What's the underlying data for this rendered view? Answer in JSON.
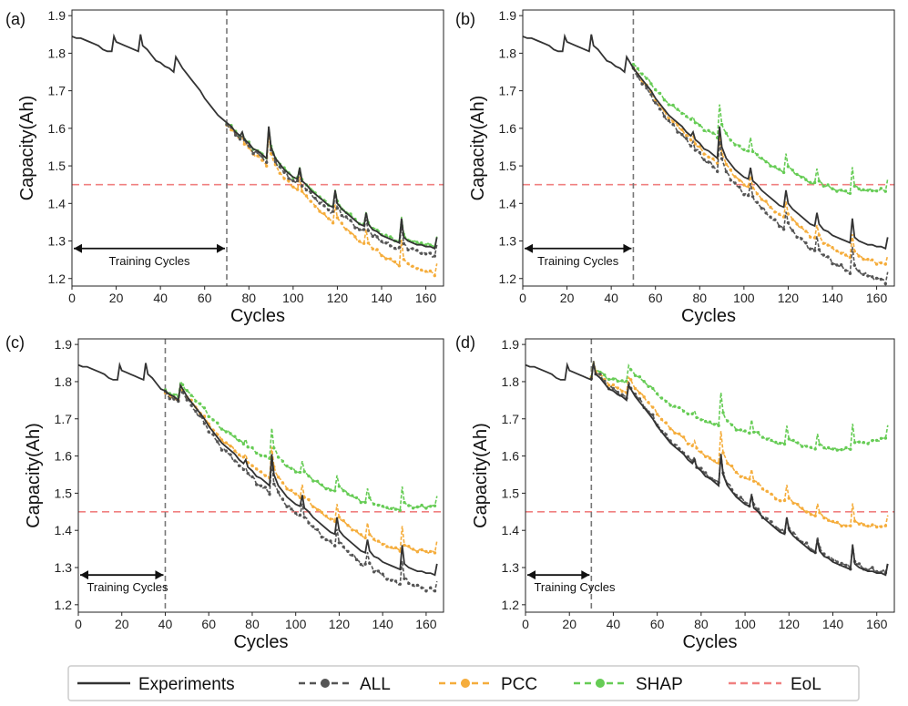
{
  "chart_data": {
    "type": "line",
    "figure": "Battery capacity prediction, 2x2 panels",
    "x_range": [
      0,
      168
    ],
    "y_range": [
      1.18,
      1.915
    ],
    "x_ticks": [
      0,
      20,
      40,
      60,
      80,
      100,
      120,
      140,
      160
    ],
    "y_ticks": [
      1.2,
      1.3,
      1.4,
      1.5,
      1.6,
      1.7,
      1.8,
      1.9
    ],
    "xlabel": "Cycles",
    "ylabel": "Capacity(Ah)",
    "eol_capacity": 1.45,
    "training_label": "Training Cycles",
    "experiments": {
      "name": "Experiments",
      "x": [
        0,
        2,
        4,
        6,
        8,
        10,
        12,
        14,
        16,
        18,
        19,
        20,
        22,
        24,
        26,
        28,
        30,
        31,
        32,
        34,
        36,
        38,
        40,
        42,
        44,
        46,
        47,
        48,
        50,
        52,
        54,
        56,
        58,
        60,
        62,
        64,
        66,
        68,
        70,
        72,
        74,
        76,
        77,
        78,
        80,
        82,
        84,
        86,
        88,
        89,
        90,
        92,
        94,
        96,
        98,
        100,
        102,
        103,
        104,
        106,
        108,
        110,
        112,
        114,
        116,
        118,
        119,
        120,
        122,
        124,
        126,
        128,
        130,
        132,
        133,
        134,
        136,
        138,
        140,
        142,
        144,
        146,
        148,
        149,
        150,
        152,
        154,
        156,
        158,
        160,
        162,
        164,
        165
      ],
      "y": [
        1.845,
        1.84,
        1.84,
        1.835,
        1.83,
        1.825,
        1.82,
        1.81,
        1.805,
        1.805,
        1.845,
        1.83,
        1.825,
        1.82,
        1.815,
        1.81,
        1.805,
        1.85,
        1.82,
        1.81,
        1.795,
        1.78,
        1.775,
        1.765,
        1.76,
        1.75,
        1.79,
        1.78,
        1.76,
        1.745,
        1.73,
        1.715,
        1.7,
        1.68,
        1.665,
        1.65,
        1.635,
        1.625,
        1.615,
        1.605,
        1.59,
        1.58,
        1.59,
        1.57,
        1.56,
        1.545,
        1.54,
        1.53,
        1.52,
        1.605,
        1.55,
        1.52,
        1.505,
        1.49,
        1.48,
        1.47,
        1.465,
        1.495,
        1.46,
        1.45,
        1.435,
        1.425,
        1.415,
        1.405,
        1.395,
        1.39,
        1.435,
        1.4,
        1.385,
        1.375,
        1.365,
        1.355,
        1.345,
        1.34,
        1.375,
        1.345,
        1.33,
        1.325,
        1.315,
        1.31,
        1.305,
        1.3,
        1.295,
        1.36,
        1.31,
        1.3,
        1.295,
        1.29,
        1.29,
        1.285,
        1.285,
        1.28,
        1.31
      ]
    },
    "panels": [
      {
        "label": "(a)",
        "training_end": 70,
        "all": {
          "name": "ALL",
          "start": 1.61,
          "end": 1.29
        },
        "pcc": {
          "name": "PCC",
          "start": 1.61,
          "end": 1.24
        },
        "shap": {
          "name": "SHAP",
          "start": 1.615,
          "end": 1.315
        }
      },
      {
        "label": "(b)",
        "training_end": 50,
        "all": {
          "name": "ALL",
          "start": 1.755,
          "end": 1.22
        },
        "pcc": {
          "name": "PCC",
          "start": 1.76,
          "end": 1.265
        },
        "shap": {
          "name": "SHAP",
          "start": 1.77,
          "end": 1.465
        }
      },
      {
        "label": "(c)",
        "training_end": 40,
        "all": {
          "name": "ALL",
          "start": 1.77,
          "end": 1.265
        },
        "pcc": {
          "name": "PCC",
          "start": 1.77,
          "end": 1.37
        },
        "shap": {
          "name": "SHAP",
          "start": 1.775,
          "end": 1.495
        }
      },
      {
        "label": "(d)",
        "training_end": 30,
        "all": {
          "name": "ALL",
          "start": 1.81,
          "end": 1.315
        },
        "pcc": {
          "name": "PCC",
          "start": 1.81,
          "end": 1.44
        },
        "shap": {
          "name": "SHAP",
          "start": 1.81,
          "end": 1.68
        }
      }
    ],
    "legend": {
      "position": "bottom-center",
      "entries": [
        {
          "name": "Experiments",
          "color": "#333333",
          "style": "solid"
        },
        {
          "name": "ALL",
          "color": "#555555",
          "style": "dashed-dot"
        },
        {
          "name": "PCC",
          "color": "#f5ad3c",
          "style": "dashed-dot"
        },
        {
          "name": "SHAP",
          "color": "#66cc55",
          "style": "dashed-dot"
        },
        {
          "name": "EoL",
          "color": "#f08080",
          "style": "dashed"
        }
      ]
    },
    "colors": {
      "experiments": "#333333",
      "all": "#555555",
      "pcc": "#f5ad3c",
      "shap": "#66cc55",
      "eol": "#f08080",
      "training_line": "#777777"
    }
  }
}
